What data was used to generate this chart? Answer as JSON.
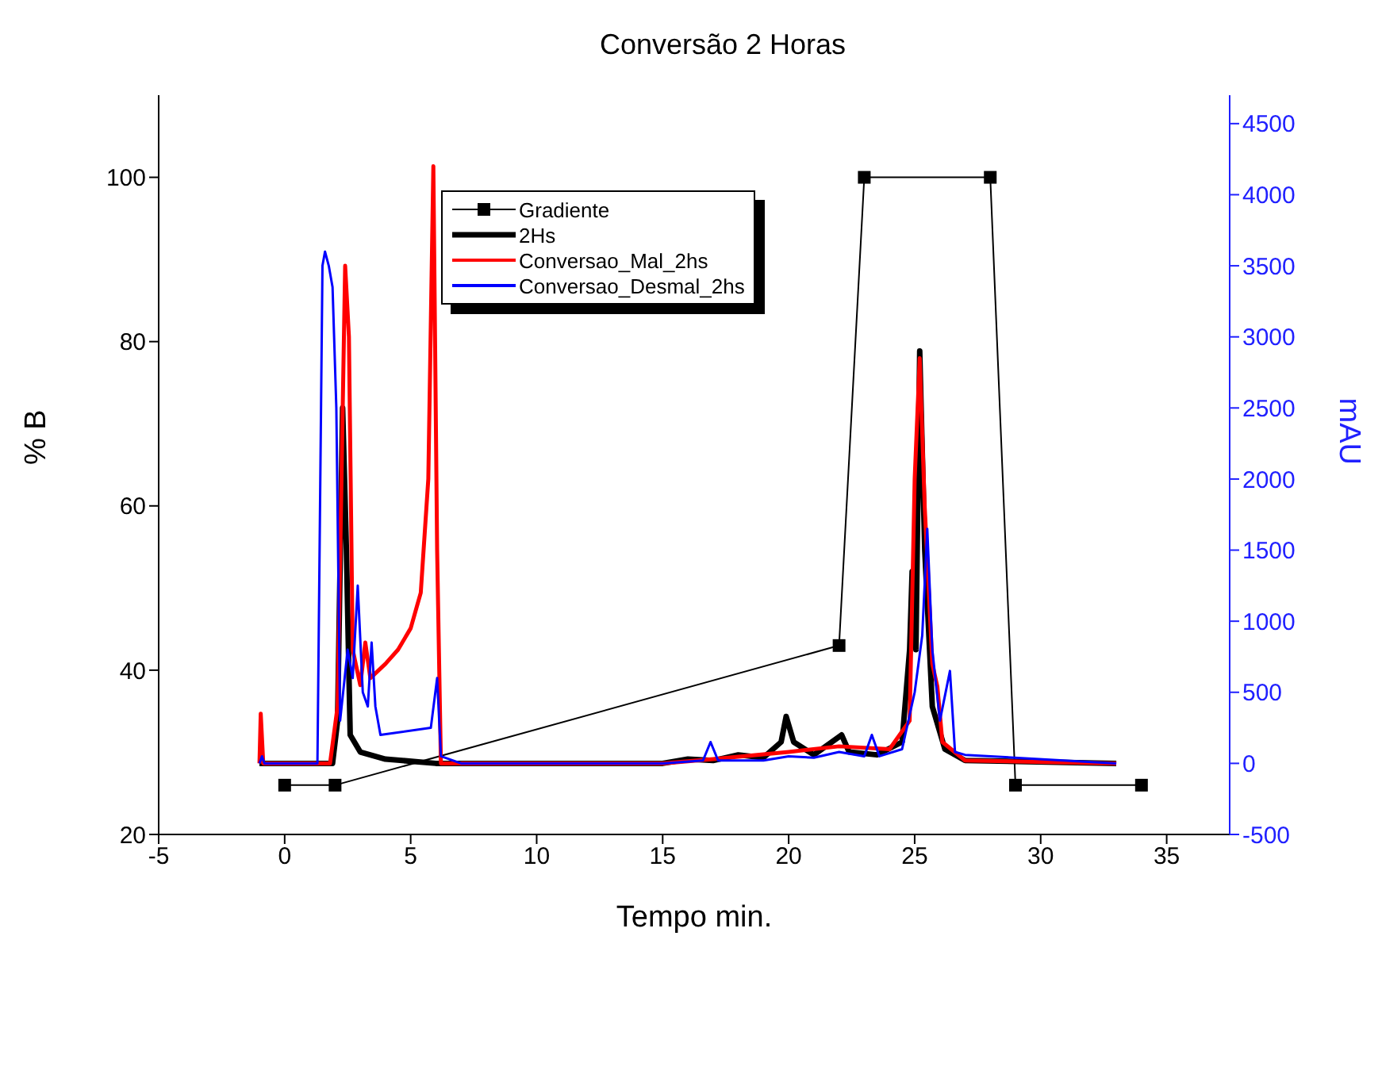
{
  "chart_data": {
    "type": "line",
    "title": "Conversão 2 Horas",
    "xlabel": "Tempo min.",
    "ylabel": "% B",
    "y2label": "mAU",
    "xlim": [
      -5,
      37.5
    ],
    "xticks": [
      -5,
      0,
      5,
      10,
      15,
      20,
      25,
      30,
      35
    ],
    "ylim": [
      20,
      110
    ],
    "yticks": [
      20,
      40,
      60,
      80,
      100
    ],
    "y2lim": [
      -500,
      4700
    ],
    "y2ticks": [
      -500,
      0,
      500,
      1000,
      1500,
      2000,
      2500,
      3000,
      3500,
      4000,
      4500
    ],
    "legend": "top left",
    "line_style": "solid",
    "series": [
      {
        "name": "Gradiente",
        "color": "#000000",
        "marker": "square",
        "x": [
          0,
          2,
          22,
          23,
          28,
          29,
          34
        ],
        "values": [
          26,
          26,
          43,
          100,
          100,
          26,
          26
        ]
      },
      {
        "name": "2Hs",
        "color": "#000000",
        "axis": "y2",
        "marker": "none",
        "x": [
          -1,
          1.9,
          2.1,
          2.3,
          2.45,
          2.6,
          3,
          4,
          6,
          15,
          16,
          17,
          18,
          19,
          19.7,
          19.9,
          20.2,
          21,
          22.1,
          22.4,
          23.5,
          24.5,
          24.8,
          24.9,
          25.05,
          25.2,
          25.4,
          25.7,
          26.2,
          27,
          33
        ],
        "values": [
          0,
          0,
          300,
          2500,
          1500,
          200,
          80,
          30,
          0,
          0,
          30,
          20,
          60,
          40,
          150,
          330,
          150,
          60,
          200,
          80,
          60,
          150,
          800,
          1350,
          800,
          2900,
          1500,
          400,
          100,
          20,
          0
        ]
      },
      {
        "name": "Conversao_Mal_2hs",
        "color": "#ff0000",
        "axis": "y2",
        "marker": "none",
        "x": [
          -1,
          -0.95,
          -0.85,
          1.8,
          2.1,
          2.4,
          2.55,
          2.7,
          3.0,
          3.2,
          3.4,
          4.0,
          4.5,
          5.0,
          5.4,
          5.7,
          5.9,
          6.05,
          6.2,
          15,
          17,
          20,
          22,
          24,
          24.8,
          25.0,
          25.2,
          25.4,
          25.7,
          25.9,
          26.1,
          27,
          33
        ],
        "values": [
          0,
          350,
          0,
          0,
          400,
          3500,
          3000,
          800,
          550,
          850,
          600,
          700,
          800,
          950,
          1200,
          2000,
          4200,
          1500,
          0,
          0,
          30,
          80,
          120,
          100,
          300,
          2000,
          2850,
          1800,
          700,
          540,
          150,
          20,
          0
        ]
      },
      {
        "name": "Conversao_Desmal_2hs",
        "color": "#0000ff",
        "axis": "y2",
        "marker": "none",
        "x": [
          -1,
          -0.9,
          -0.8,
          1.3,
          1.5,
          1.6,
          1.75,
          1.9,
          2.05,
          2.2,
          2.5,
          2.7,
          2.9,
          3.1,
          3.3,
          3.45,
          3.6,
          3.8,
          5.8,
          6.05,
          6.2,
          7,
          15,
          16.6,
          16.9,
          17.2,
          19,
          20,
          21,
          22,
          23,
          23.3,
          23.6,
          24.5,
          25,
          25.3,
          25.5,
          25.7,
          26,
          26.4,
          26.6,
          27,
          33
        ],
        "values": [
          0,
          50,
          0,
          0,
          3500,
          3600,
          3500,
          3350,
          2500,
          300,
          800,
          600,
          1250,
          500,
          400,
          850,
          400,
          200,
          250,
          600,
          50,
          0,
          0,
          20,
          150,
          20,
          20,
          50,
          40,
          80,
          50,
          200,
          50,
          100,
          500,
          900,
          1650,
          800,
          300,
          650,
          80,
          60,
          0
        ]
      }
    ]
  }
}
